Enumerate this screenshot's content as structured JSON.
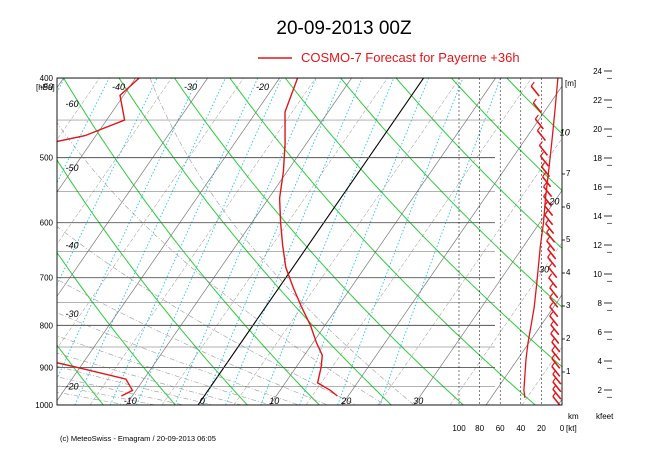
{
  "header": {
    "title": "20-09-2013  00Z",
    "legend_label": "COSMO-7 Forecast for Payerne   +36h"
  },
  "footer": {
    "credit": "(c) MeteoSwiss - Emagram  /  20-09-2013  06:05"
  },
  "colors": {
    "forecast": "#e0161b",
    "isotherm": "#7a7a7a",
    "zero_isotherm": "#000000",
    "dry_adiabat": "#2dcc3a",
    "moist_adiabat": "#999999",
    "mixing_ratio": "#22c6e0",
    "isobar": "#555555"
  },
  "chart_data": {
    "type": "line",
    "title": "20-09-2013  00Z",
    "diagram": "Emagram",
    "y_axis": {
      "unit": "[hPa]",
      "scale": "log",
      "range": [
        400,
        1000
      ],
      "ticks": [
        400,
        500,
        600,
        700,
        800,
        900,
        1000
      ]
    },
    "x_axis": {
      "range": [
        -25,
        42
      ],
      "labels": [
        "-10",
        "0",
        "10",
        "20",
        "30"
      ],
      "label_values": [
        -10,
        0,
        10,
        20,
        30
      ]
    },
    "isotherm_labels": {
      "upper": [
        "-60",
        "-50",
        "-40",
        "-30",
        "-20"
      ],
      "upper_values": [
        -60,
        -50,
        -40,
        -30,
        -20
      ],
      "left": [
        "-60",
        "-50",
        "-40",
        "-30",
        "-20"
      ],
      "left_pressures": [
        430,
        515,
        640,
        775,
        950
      ]
    },
    "series": [
      {
        "name": "COSMO-7 Forecast for Payerne   +36h",
        "role": "dewpoint",
        "points": [
          [
            400,
            -39.5
          ],
          [
            420,
            -40.5
          ],
          [
            450,
            -37.5
          ],
          [
            470,
            -41.5
          ],
          [
            500,
            -54
          ],
          [
            520,
            -51.5
          ],
          [
            540,
            -49.5
          ],
          [
            560,
            -50.5
          ],
          [
            580,
            -52
          ],
          [
            600,
            -51.5
          ],
          [
            640,
            -51
          ],
          [
            680,
            -48
          ],
          [
            720,
            -44.5
          ],
          [
            760,
            -41.5
          ],
          [
            800,
            -39
          ],
          [
            830,
            -36.5
          ],
          [
            860,
            -31.5
          ],
          [
            880,
            -26
          ],
          [
            905,
            -19
          ],
          [
            930,
            -12.5
          ],
          [
            960,
            -10.5
          ],
          [
            975,
            -11.5
          ]
        ]
      },
      {
        "name": "COSMO-7 Forecast for Payerne   +36h",
        "role": "temperature",
        "points": [
          [
            400,
            -17.5
          ],
          [
            440,
            -16
          ],
          [
            480,
            -13
          ],
          [
            520,
            -10.5
          ],
          [
            560,
            -8.5
          ],
          [
            600,
            -6
          ],
          [
            640,
            -3.5
          ],
          [
            680,
            -1
          ],
          [
            720,
            2
          ],
          [
            760,
            5
          ],
          [
            800,
            8
          ],
          [
            840,
            10.5
          ],
          [
            870,
            12.5
          ],
          [
            900,
            13.5
          ],
          [
            920,
            14
          ],
          [
            940,
            14.5
          ],
          [
            960,
            17
          ],
          [
            975,
            18.5
          ]
        ]
      }
    ],
    "height_axis": {
      "unit": "[m]",
      "ticks": [
        "1",
        "2",
        "3",
        "4",
        "5",
        "6",
        "7"
      ],
      "label": "km"
    },
    "wind_axis": {
      "unit": "[kt]",
      "ticks": [
        "100",
        "80",
        "60",
        "40",
        "20",
        "0"
      ],
      "range": [
        0,
        100
      ],
      "speed_labels": [
        "10",
        "20",
        "30"
      ],
      "speed_label_values": [
        10,
        20,
        30
      ],
      "speed_label_pressures": [
        470,
        570,
        690
      ],
      "profile": [
        [
          400,
          4
        ],
        [
          440,
          7
        ],
        [
          480,
          10
        ],
        [
          520,
          13
        ],
        [
          560,
          16
        ],
        [
          600,
          18
        ],
        [
          640,
          21
        ],
        [
          680,
          23
        ],
        [
          720,
          25
        ],
        [
          760,
          27
        ],
        [
          800,
          30
        ],
        [
          840,
          33
        ],
        [
          880,
          35
        ],
        [
          920,
          36
        ],
        [
          960,
          37
        ],
        [
          980,
          36
        ]
      ]
    },
    "barbs": [
      [
        415,
        26
      ],
      [
        435,
        24
      ],
      [
        455,
        22
      ],
      [
        470,
        20
      ],
      [
        490,
        18
      ],
      [
        505,
        17
      ],
      [
        520,
        16
      ],
      [
        535,
        15
      ],
      [
        550,
        14
      ],
      [
        565,
        14
      ],
      [
        580,
        13
      ],
      [
        595,
        13
      ],
      [
        610,
        12
      ],
      [
        625,
        11
      ],
      [
        640,
        11
      ],
      [
        655,
        10
      ],
      [
        670,
        10
      ],
      [
        690,
        9
      ],
      [
        710,
        9
      ],
      [
        730,
        8
      ],
      [
        750,
        8
      ],
      [
        770,
        8
      ],
      [
        790,
        8
      ],
      [
        810,
        7
      ],
      [
        830,
        7
      ],
      [
        850,
        6
      ],
      [
        870,
        6
      ],
      [
        890,
        6
      ],
      [
        910,
        6
      ],
      [
        930,
        5
      ],
      [
        950,
        5
      ],
      [
        970,
        5
      ],
      [
        990,
        5
      ]
    ],
    "kfeet_axis": {
      "label": "kfeet",
      "ticks": [
        "2",
        "4",
        "6",
        "8",
        "10",
        "12",
        "14",
        "16",
        "18",
        "20",
        "22",
        "24"
      ],
      "values": [
        2,
        4,
        6,
        8,
        10,
        12,
        14,
        16,
        18,
        20,
        22,
        24
      ]
    }
  }
}
